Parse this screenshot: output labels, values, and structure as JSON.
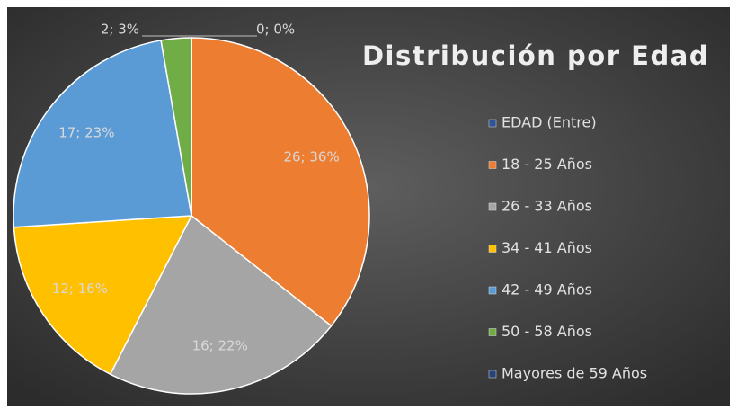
{
  "chart_data": {
    "type": "pie",
    "title": "Distribución por Edad",
    "categories": [
      "EDAD (Entre)",
      "18 - 25 Años",
      "26 - 33 Años",
      "34 - 41 Años",
      "42 - 49 Años",
      "50 - 58 Años",
      "Mayores de 59 Años"
    ],
    "values": [
      0,
      26,
      16,
      12,
      17,
      2,
      0
    ],
    "value_labels": [
      "0; 0%",
      "26; 36%",
      "16; 22%",
      "12; 16%",
      "17; 23%",
      "2; 3%",
      null
    ],
    "colors": [
      "#2f5597",
      "#ed7d31",
      "#a5a5a5",
      "#ffc000",
      "#5b9bd5",
      "#70ad47",
      "#264478"
    ],
    "legend": "right"
  }
}
